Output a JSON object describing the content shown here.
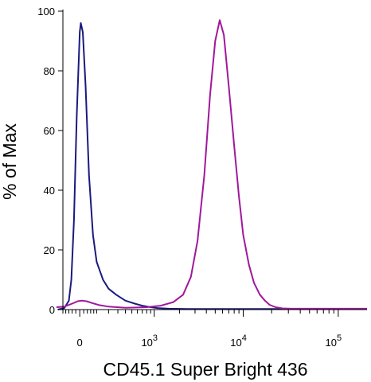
{
  "chart_data": {
    "type": "line",
    "title": "",
    "xlabel": "CD45.1 Super Bright 436",
    "ylabel": "% of Max",
    "x_scale": "biexponential",
    "xlim": [
      -100,
      200000
    ],
    "ylim": [
      0,
      100
    ],
    "grid": false,
    "legend": "none",
    "y_ticks": [
      {
        "value": 0,
        "label": "0"
      },
      {
        "value": 20,
        "label": "20"
      },
      {
        "value": 40,
        "label": "40"
      },
      {
        "value": 60,
        "label": "60"
      },
      {
        "value": 80,
        "label": "80"
      },
      {
        "value": 100,
        "label": "100"
      }
    ],
    "x_ticks": [
      {
        "value": 0,
        "base": "0",
        "exp": ""
      },
      {
        "value": 1000,
        "base": "10",
        "exp": "3"
      },
      {
        "value": 10000,
        "base": "10",
        "exp": "4"
      },
      {
        "value": 100000,
        "base": "10",
        "exp": "5"
      }
    ],
    "series": [
      {
        "color": "#1a1a80",
        "points": [
          [
            -140,
            0
          ],
          [
            -90,
            0.5
          ],
          [
            -60,
            3
          ],
          [
            -45,
            10
          ],
          [
            -30,
            30
          ],
          [
            -15,
            65
          ],
          [
            0,
            93
          ],
          [
            5,
            96
          ],
          [
            15,
            93
          ],
          [
            30,
            75
          ],
          [
            50,
            45
          ],
          [
            75,
            25
          ],
          [
            100,
            16
          ],
          [
            150,
            10
          ],
          [
            200,
            7
          ],
          [
            280,
            5
          ],
          [
            400,
            3
          ],
          [
            550,
            2
          ],
          [
            700,
            1.3
          ],
          [
            900,
            0.8
          ],
          [
            1100,
            0.5
          ],
          [
            1500,
            0.3
          ],
          [
            2500,
            0.2
          ],
          [
            6000,
            0.2
          ],
          [
            30000,
            0.2
          ],
          [
            200000,
            0.2
          ]
        ]
      },
      {
        "color": "#a0189c",
        "points": [
          [
            -150,
            0.8
          ],
          [
            -90,
            1
          ],
          [
            -40,
            2
          ],
          [
            -10,
            2.8
          ],
          [
            10,
            3
          ],
          [
            35,
            2.8
          ],
          [
            70,
            2.2
          ],
          [
            120,
            1.5
          ],
          [
            200,
            1
          ],
          [
            400,
            0.6
          ],
          [
            800,
            0.8
          ],
          [
            1200,
            1.3
          ],
          [
            1700,
            2.5
          ],
          [
            2200,
            5
          ],
          [
            2700,
            11
          ],
          [
            3200,
            23
          ],
          [
            3800,
            45
          ],
          [
            4400,
            72
          ],
          [
            5000,
            90
          ],
          [
            5600,
            97
          ],
          [
            6200,
            92
          ],
          [
            7000,
            75
          ],
          [
            8000,
            55
          ],
          [
            9000,
            38
          ],
          [
            10000,
            25
          ],
          [
            11500,
            15
          ],
          [
            13000,
            9
          ],
          [
            15000,
            5
          ],
          [
            17000,
            3
          ],
          [
            19000,
            1.6
          ],
          [
            22000,
            0.8
          ],
          [
            26000,
            0.4
          ],
          [
            32000,
            0.3
          ],
          [
            200000,
            0.3
          ]
        ]
      }
    ]
  }
}
